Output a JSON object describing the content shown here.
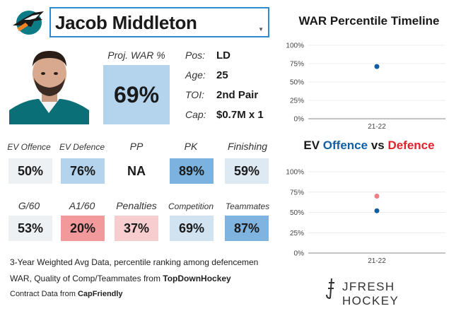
{
  "player": {
    "name": "Jacob Middleton",
    "team_logo_icon": "sharks-logo-icon",
    "headshot_icon": "player-headshot-icon"
  },
  "war": {
    "label": "Proj. WAR %",
    "value": "69%"
  },
  "info": [
    {
      "key": "Pos:",
      "value": "LD"
    },
    {
      "key": "Age:",
      "value": "25"
    },
    {
      "key": "TOI:",
      "value": "2nd Pair"
    },
    {
      "key": "Cap:",
      "value": "$0.7M x 1"
    }
  ],
  "stats_row1": [
    {
      "label": "EV Offence",
      "value": "50%",
      "color": "#eef1f3"
    },
    {
      "label": "EV Defence",
      "value": "76%",
      "color": "#b3d4ec"
    },
    {
      "label": "PP",
      "value": "NA",
      "color": "#ffffff"
    },
    {
      "label": "PK",
      "value": "89%",
      "color": "#7bb2df"
    },
    {
      "label": "Finishing",
      "value": "59%",
      "color": "#dde9f3"
    }
  ],
  "stats_row2": [
    {
      "label": "G/60",
      "value": "53%",
      "color": "#eef1f3"
    },
    {
      "label": "A1/60",
      "value": "20%",
      "color": "#f2999c"
    },
    {
      "label": "Penalties",
      "value": "37%",
      "color": "#f8cdcf"
    },
    {
      "label": "Competition",
      "value": "69%",
      "color": "#d1e3f1"
    },
    {
      "label": "Teammates",
      "value": "87%",
      "color": "#7fb4e0"
    }
  ],
  "footer": {
    "line1": "3-Year Weighted Avg Data, percentile ranking among defencemen",
    "line2_prefix": "WAR, Quality of Comp/Teammates from ",
    "line2_source": "TopDownHockey",
    "line3_prefix": "Contract Data from ",
    "line3_source": "CapFriendly"
  },
  "brand": {
    "text": "JFRESH HOCKEY",
    "icon": "jfresh-logo-icon"
  },
  "chart_data": [
    {
      "type": "scatter",
      "title": "WAR Percentile Timeline",
      "categories": [
        "21-22"
      ],
      "series": [
        {
          "values": [
            71
          ],
          "color": "#0e5fa6"
        }
      ],
      "ylim": [
        0,
        100
      ],
      "yticks": [
        "0%",
        "25%",
        "50%",
        "75%",
        "100%"
      ],
      "grid": true
    },
    {
      "type": "scatter",
      "title_parts": [
        "EV ",
        "Offence",
        " vs ",
        "Defence"
      ],
      "categories": [
        "21-22"
      ],
      "series": [
        {
          "name": "Offence",
          "values": [
            52
          ],
          "color": "#0e5fa6"
        },
        {
          "name": "Defence",
          "values": [
            70
          ],
          "color": "#f07e84"
        }
      ],
      "ylim": [
        0,
        100
      ],
      "yticks": [
        "0%",
        "25%",
        "50%",
        "75%",
        "100%"
      ],
      "grid": true
    }
  ]
}
